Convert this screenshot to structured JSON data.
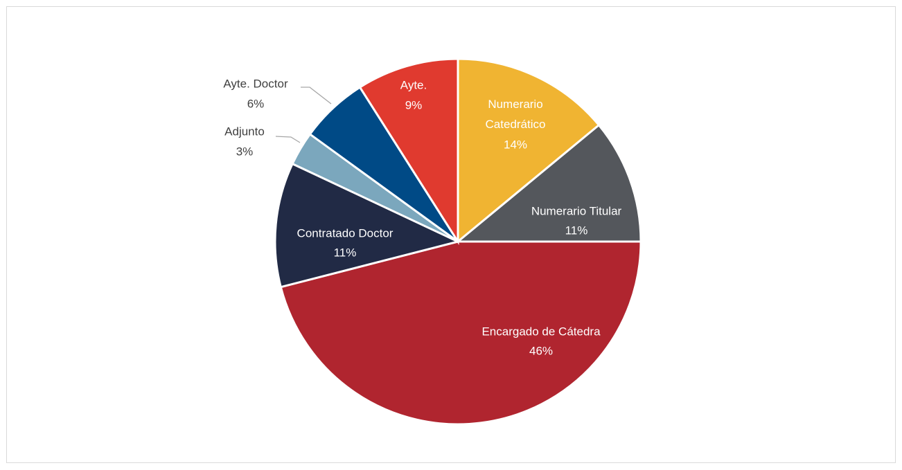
{
  "chart_data": {
    "type": "pie",
    "categories": [
      "Numerario Catedrático",
      "Numerario Titular",
      "Encargado de Cátedra",
      "Contratado Doctor",
      "Adjunto",
      "Ayte. Doctor",
      "Ayte."
    ],
    "values": [
      14,
      11,
      46,
      11,
      3,
      6,
      9
    ],
    "value_labels": [
      "14%",
      "11%",
      "46%",
      "11%",
      "3%",
      "6%",
      "9%"
    ],
    "colors": [
      "#f0b432",
      "#54575c",
      "#b0252f",
      "#212a45",
      "#7ba7bd",
      "#004a86",
      "#e03a2f"
    ]
  }
}
